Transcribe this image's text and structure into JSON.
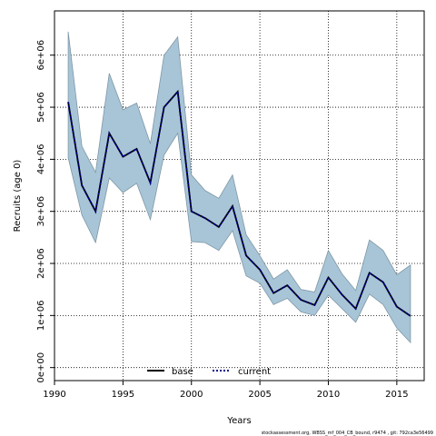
{
  "chart_data": {
    "type": "line",
    "xlabel": "Years",
    "ylabel": "Recruits (age 0)",
    "xlim": [
      1990,
      2017
    ],
    "ylim": [
      -250000,
      6850000
    ],
    "x_ticks": [
      1990,
      1995,
      2000,
      2005,
      2010,
      2015
    ],
    "y_ticks": [
      0,
      1000000,
      2000000,
      3000000,
      4000000,
      5000000,
      6000000
    ],
    "y_tick_labels": [
      "0e+00",
      "1e+06",
      "2e+06",
      "3e+06",
      "4e+06",
      "5e+06",
      "6e+06"
    ],
    "grid": true,
    "legend_placement": "bottom-center",
    "x": [
      1991,
      1992,
      1993,
      1994,
      1995,
      1996,
      1997,
      1998,
      1999,
      2000,
      2001,
      2002,
      2003,
      2004,
      2005,
      2006,
      2007,
      2008,
      2009,
      2010,
      2011,
      2012,
      2013,
      2014,
      2015,
      2016
    ],
    "series": [
      {
        "name": "base",
        "color": "#000000",
        "style": "solid",
        "values": [
          5100000,
          3500000,
          3000000,
          4500000,
          4050000,
          4200000,
          3550000,
          5000000,
          5300000,
          3000000,
          2870000,
          2700000,
          3100000,
          2150000,
          1880000,
          1430000,
          1580000,
          1300000,
          1200000,
          1730000,
          1400000,
          1130000,
          1820000,
          1640000,
          1170000,
          990000
        ]
      },
      {
        "name": "current",
        "color": "#00008b",
        "style": "dotted",
        "values": [
          5100000,
          3500000,
          3000000,
          4500000,
          4050000,
          4200000,
          3550000,
          5000000,
          5300000,
          3000000,
          2870000,
          2700000,
          3100000,
          2150000,
          1880000,
          1430000,
          1580000,
          1300000,
          1200000,
          1730000,
          1400000,
          1130000,
          1820000,
          1640000,
          1170000,
          990000
        ]
      }
    ],
    "confidence_band": {
      "color": "#a7c5d6",
      "edge_color": "#7f97a6",
      "upper": [
        6450000,
        4250000,
        3750000,
        5650000,
        4950000,
        5080000,
        4300000,
        6000000,
        6350000,
        3700000,
        3400000,
        3250000,
        3700000,
        2550000,
        2150000,
        1700000,
        1880000,
        1500000,
        1450000,
        2250000,
        1800000,
        1480000,
        2450000,
        2250000,
        1780000,
        1970000
      ],
      "lower": [
        4030000,
        2930000,
        2400000,
        3640000,
        3360000,
        3540000,
        2840000,
        4080000,
        4500000,
        2420000,
        2400000,
        2250000,
        2630000,
        1760000,
        1620000,
        1210000,
        1330000,
        1070000,
        1000000,
        1390000,
        1130000,
        870000,
        1410000,
        1210000,
        760000,
        480000
      ]
    }
  },
  "footer": "stockassessment.org, WBSS_mf_004_CB_bound, r9474 , git: 792ca3e56499"
}
